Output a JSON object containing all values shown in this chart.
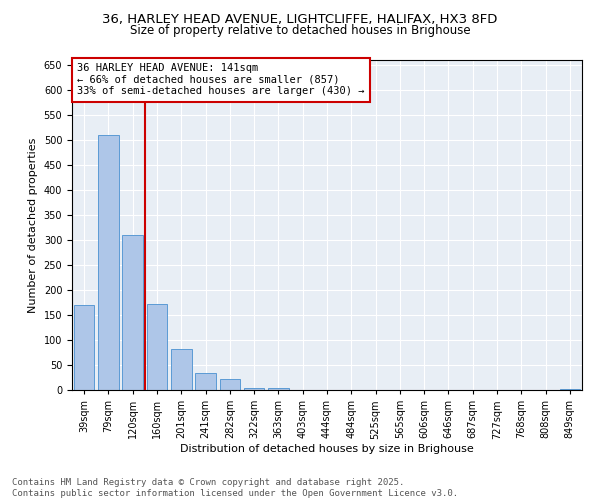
{
  "title_line1": "36, HARLEY HEAD AVENUE, LIGHTCLIFFE, HALIFAX, HX3 8FD",
  "title_line2": "Size of property relative to detached houses in Brighouse",
  "xlabel": "Distribution of detached houses by size in Brighouse",
  "ylabel": "Number of detached properties",
  "bar_values": [
    170,
    510,
    310,
    172,
    82,
    35,
    22,
    5,
    4,
    0,
    0,
    0,
    0,
    0,
    0,
    0,
    0,
    0,
    0,
    0,
    3
  ],
  "categories": [
    "39sqm",
    "79sqm",
    "120sqm",
    "160sqm",
    "201sqm",
    "241sqm",
    "282sqm",
    "322sqm",
    "363sqm",
    "403sqm",
    "444sqm",
    "484sqm",
    "525sqm",
    "565sqm",
    "606sqm",
    "646sqm",
    "687sqm",
    "727sqm",
    "768sqm",
    "808sqm",
    "849sqm"
  ],
  "bar_color": "#aec6e8",
  "bar_edge_color": "#5b9bd5",
  "vline_color": "#cc0000",
  "annotation_text": "36 HARLEY HEAD AVENUE: 141sqm\n← 66% of detached houses are smaller (857)\n33% of semi-detached houses are larger (430) →",
  "annotation_box_color": "#ffffff",
  "annotation_box_edge": "#cc0000",
  "ylim": [
    0,
    660
  ],
  "yticks": [
    0,
    50,
    100,
    150,
    200,
    250,
    300,
    350,
    400,
    450,
    500,
    550,
    600,
    650
  ],
  "bg_color": "#e8eef5",
  "footer_text": "Contains HM Land Registry data © Crown copyright and database right 2025.\nContains public sector information licensed under the Open Government Licence v3.0.",
  "title_fontsize": 9.5,
  "subtitle_fontsize": 8.5,
  "axis_label_fontsize": 8,
  "tick_fontsize": 7,
  "annotation_fontsize": 7.5,
  "footer_fontsize": 6.5
}
